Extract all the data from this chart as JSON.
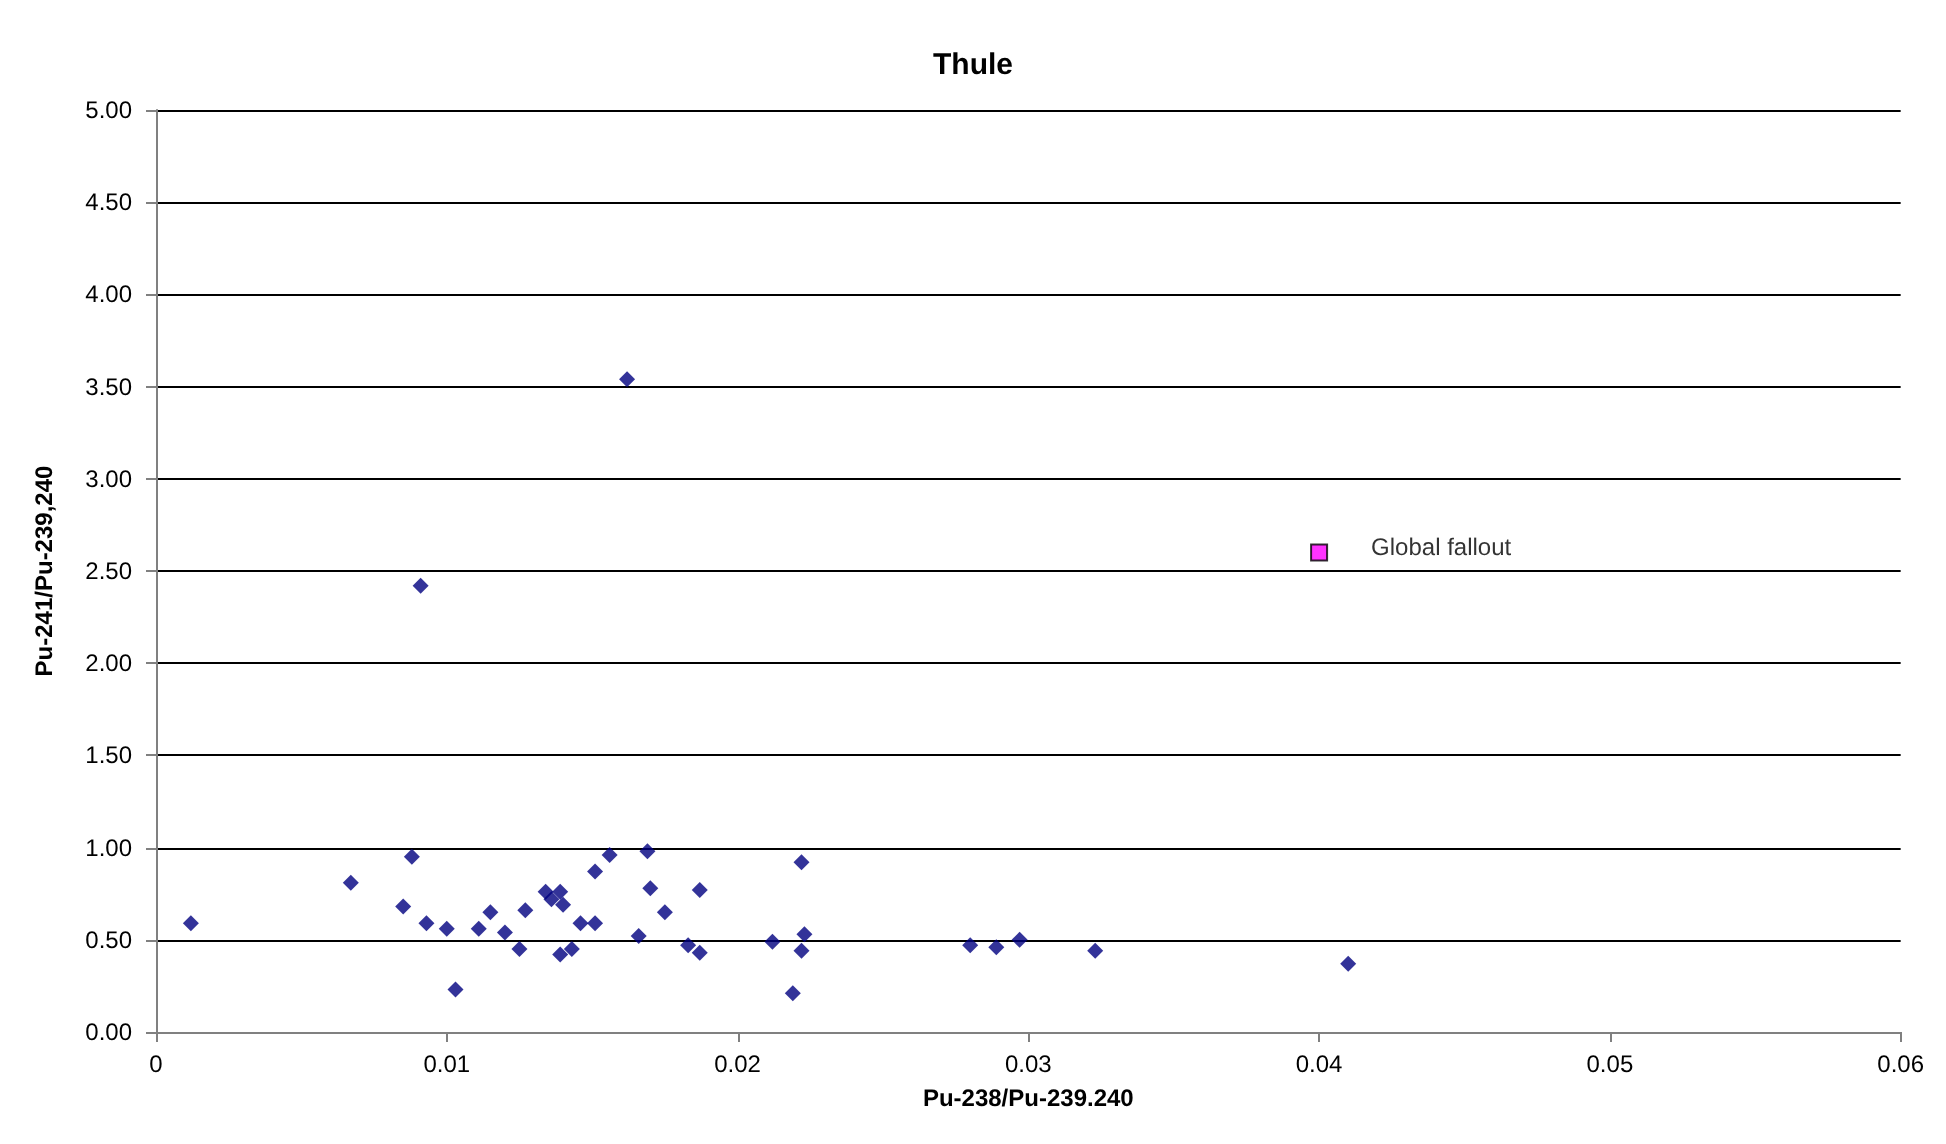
{
  "chart_data": {
    "type": "scatter",
    "title": "Thule",
    "xlabel": "Pu-238/Pu-239.240",
    "ylabel": "Pu-241/Pu-239,240",
    "series": [
      {
        "color": "#000080",
        "marker": "diamond",
        "x": [
          0.0012,
          0.0067,
          0.0088,
          0.0085,
          0.0093,
          0.01,
          0.0103,
          0.0111,
          0.0115,
          0.012,
          0.0125,
          0.0127,
          0.0134,
          0.0136,
          0.0139,
          0.014,
          0.0139,
          0.0143,
          0.0146,
          0.0151,
          0.0151,
          0.0156,
          0.0169,
          0.017,
          0.0166,
          0.0175,
          0.0183,
          0.0187,
          0.0187,
          0.0212,
          0.0222,
          0.0223,
          0.0222,
          0.0219,
          0.028,
          0.0289,
          0.0297,
          0.0323,
          0.041,
          0.0162,
          0.0091
        ],
        "values": [
          0.59,
          0.81,
          0.95,
          0.68,
          0.59,
          0.56,
          0.23,
          0.56,
          0.65,
          0.54,
          0.45,
          0.66,
          0.76,
          0.72,
          0.76,
          0.69,
          0.42,
          0.45,
          0.59,
          0.59,
          0.87,
          0.96,
          0.98,
          0.78,
          0.52,
          0.65,
          0.47,
          0.77,
          0.43,
          0.49,
          0.92,
          0.53,
          0.44,
          0.21,
          0.47,
          0.46,
          0.5,
          0.44,
          0.37,
          3.54,
          2.42
        ]
      },
      {
        "color": "#ff00ff",
        "marker": "square",
        "x": [
          0.04
        ],
        "values": [
          2.6
        ]
      }
    ],
    "annotations": [
      {
        "text": "Global fallout",
        "x": 0.04,
        "y": 2.6
      }
    ],
    "xlim": [
      0,
      0.06
    ],
    "xticks": [
      0,
      0.01,
      0.02,
      0.03,
      0.04,
      0.05,
      0.06
    ],
    "ylim": [
      0,
      5
    ],
    "yticks": [
      {
        "value": 0,
        "label": "0.00"
      },
      {
        "value": 0.5,
        "label": "0.50"
      },
      {
        "value": 1,
        "label": "1.00"
      },
      {
        "value": 1.5,
        "label": "1.50"
      },
      {
        "value": 2,
        "label": "2.00"
      },
      {
        "value": 2.5,
        "label": "2.50"
      },
      {
        "value": 3,
        "label": "3.00"
      },
      {
        "value": 3.5,
        "label": "3.50"
      },
      {
        "value": 4,
        "label": "4.00"
      },
      {
        "value": 4.5,
        "label": "4.50"
      },
      {
        "value": 5,
        "label": "5.00"
      }
    ],
    "grid": "y",
    "legend": false
  }
}
